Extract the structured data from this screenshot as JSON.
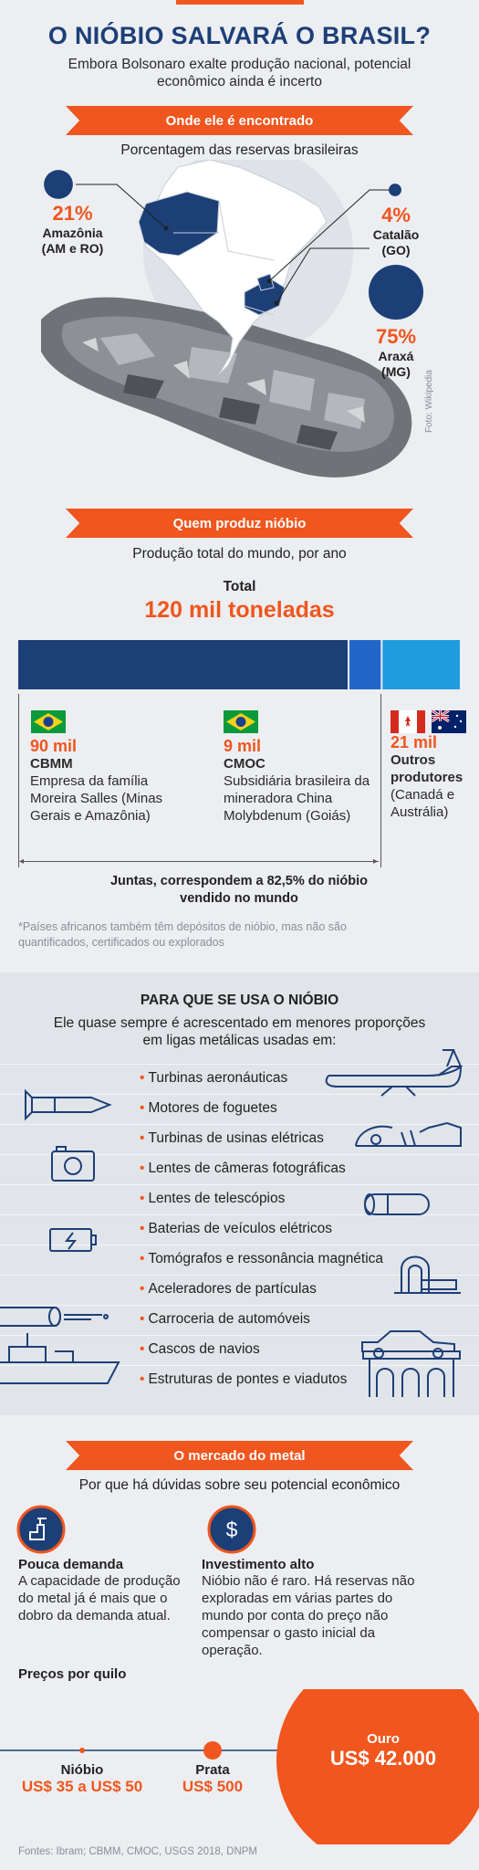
{
  "header": {
    "title": "O NIÓBIO SALVARÁ O BRASIL?",
    "subtitle": "Embora Bolsonaro exalte produção nacional, potencial econômico ainda é incerto"
  },
  "location": {
    "ribbon": "Onde ele é encontrado",
    "caption": "Porcentagem das reservas brasileiras",
    "reserves": [
      {
        "pct": "21%",
        "region": "Amazônia (AM e RO)",
        "value": 21
      },
      {
        "pct": "4%",
        "region": "Catalão (GO)",
        "value": 4
      },
      {
        "pct": "75%",
        "region": "Araxá (MG)",
        "value": 75
      }
    ],
    "photo_credit": "Foto: Wikipedia"
  },
  "production": {
    "ribbon": "Quem produz nióbio",
    "caption": "Produção total do mundo, por ano",
    "total_label": "Total",
    "total_value": "120 mil toneladas",
    "colors": {
      "cbmm": "#1d3f78",
      "cmoc": "#2366c9",
      "others": "#1f9be0"
    },
    "producers": [
      {
        "value": "90 mil",
        "name": "CBMM",
        "desc": "Empresa da família Moreira Salles (Minas Gerais e Amazônia)",
        "amount": 90
      },
      {
        "value": "9 mil",
        "name": "CMOC",
        "desc": "Subsidiária brasileira da mineradora China Molybdenum (Goiás)",
        "amount": 9
      },
      {
        "value": "21 mil",
        "name": "Outros produtores",
        "desc": "(Canadá e Austrália)",
        "amount": 21
      }
    ],
    "together": "Juntas, correspondem a 82,5% do nióbio vendido no mundo",
    "footnote": "*Países africanos também têm depósitos de nióbio, mas não são quantificados, certificados ou explorados"
  },
  "uses": {
    "heading": "PARA QUE SE USA O NIÓBIO",
    "intro": "Ele quase sempre é acrescentado em menores proporções em ligas metálicas usadas em:",
    "items": [
      "Turbinas aeronáuticas",
      "Motores de foguetes",
      "Turbinas de usinas elétricas",
      "Lentes de câmeras fotográficas",
      "Lentes de telescópios",
      "Baterias de veículos elétricos",
      "Tomógrafos e ressonância magnética",
      "Aceleradores de partículas",
      "Carroceria de automóveis",
      "Cascos de navios",
      "Estruturas de pontes e viadutos"
    ]
  },
  "market": {
    "ribbon": "O mercado do metal",
    "caption": "Por que há dúvidas sobre seu potencial econômico",
    "demand_title": "Pouca demanda",
    "demand_text": "A capacidade de produção do metal já é mais que o dobro da demanda atual.",
    "invest_title": "Investimento alto",
    "invest_text": "Nióbio não é raro. Há reservas não exploradas em várias partes do mundo por conta do preço não compensar o gasto inicial da operação.",
    "prices_heading": "Preços por quilo",
    "prices": [
      {
        "metal": "Nióbio",
        "price": "US$ 35 a US$ 50"
      },
      {
        "metal": "Prata",
        "price": "US$ 500"
      },
      {
        "metal": "Ouro",
        "price": "US$ 42.000"
      }
    ]
  },
  "sources": "Fontes: Ibram; CBMM, CMOC, USGS 2018, DNPM"
}
